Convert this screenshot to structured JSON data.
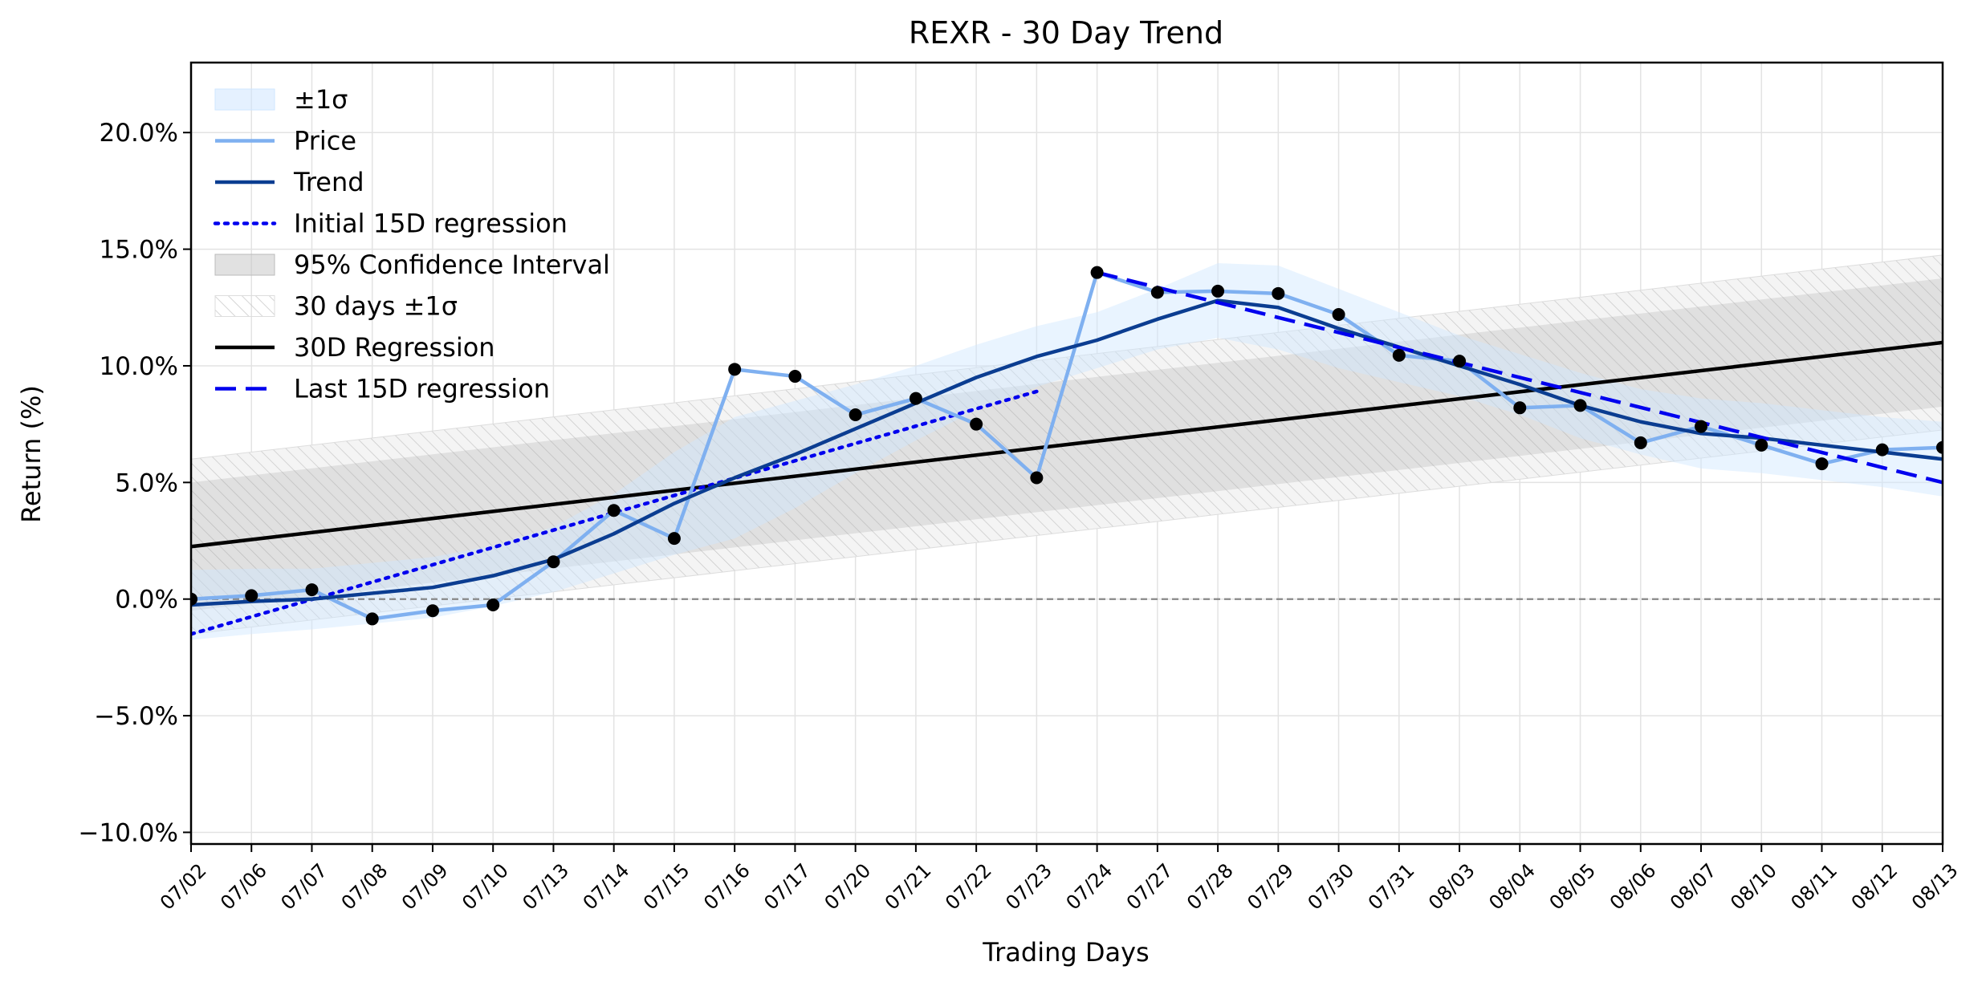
{
  "chart_data": {
    "type": "line",
    "title": "REXR - 30 Day Trend",
    "xlabel": "Trading Days",
    "ylabel": "Return (%)",
    "x": [
      "07/02",
      "07/06",
      "07/07",
      "07/08",
      "07/09",
      "07/10",
      "07/13",
      "07/14",
      "07/15",
      "07/16",
      "07/17",
      "07/20",
      "07/21",
      "07/22",
      "07/23",
      "07/24",
      "07/27",
      "07/28",
      "07/29",
      "07/30",
      "07/31",
      "08/03",
      "08/04",
      "08/05",
      "08/06",
      "08/07",
      "08/10",
      "08/11",
      "08/12",
      "08/13"
    ],
    "ylim": [
      -10.5,
      23
    ],
    "yticks": [
      -10,
      -5,
      0,
      5,
      10,
      15,
      20
    ],
    "ytick_labels": [
      "−10.0%",
      "−5.0%",
      "0.0%",
      "5.0%",
      "10.0%",
      "15.0%",
      "20.0%"
    ],
    "grid": true,
    "legend_position": "top-left",
    "legend": [
      {
        "label": "±1σ",
        "kind": "patch",
        "color": "#cfe6ff"
      },
      {
        "label": "Price",
        "kind": "line",
        "color": "#7fb0f0"
      },
      {
        "label": "Trend",
        "kind": "line",
        "color": "#0b3d91"
      },
      {
        "label": "Initial 15D regression",
        "kind": "dotted",
        "color": "#0000ee"
      },
      {
        "label": "95% Confidence Interval",
        "kind": "patch",
        "color": "#c8c8c8"
      },
      {
        "label": "30 days ±1σ",
        "kind": "hatch",
        "color": "#cccccc"
      },
      {
        "label": "30D Regression",
        "kind": "line",
        "color": "#000000"
      },
      {
        "label": "Last 15D regression",
        "kind": "dashed",
        "color": "#0000ee"
      }
    ],
    "series": [
      {
        "name": "Price",
        "color": "#7fb0f0",
        "markers": true,
        "values": [
          0.0,
          0.15,
          0.4,
          -0.85,
          -0.5,
          -0.25,
          1.6,
          3.8,
          2.6,
          9.85,
          9.55,
          7.9,
          8.6,
          7.5,
          5.2,
          14.0,
          13.15,
          13.2,
          13.1,
          12.2,
          10.45,
          10.2,
          8.2,
          8.3,
          6.7,
          7.4,
          6.6,
          5.8,
          6.4,
          6.5
        ]
      },
      {
        "name": "Trend",
        "color": "#0b3d91",
        "values": [
          -0.25,
          -0.1,
          0.0,
          0.25,
          0.5,
          1.0,
          1.7,
          2.8,
          4.1,
          5.2,
          6.2,
          7.3,
          8.4,
          9.5,
          10.4,
          11.1,
          12.0,
          12.8,
          12.5,
          11.6,
          10.8,
          10.0,
          9.2,
          8.3,
          7.6,
          7.1,
          6.9,
          6.6,
          6.3,
          6.0
        ]
      },
      {
        "name": "Initial 15D regression",
        "color": "#0000ee",
        "style": "dotted",
        "x_range": [
          0,
          14
        ],
        "line": [
          -1.5,
          8.9
        ]
      },
      {
        "name": "30D Regression",
        "color": "#000000",
        "x_range": [
          0,
          29
        ],
        "line": [
          2.25,
          11.0
        ],
        "ci95_half_width": [
          2.75,
          2.75
        ],
        "band_1sigma_half_width": [
          3.75,
          3.75
        ]
      },
      {
        "name": "Last 15D regression",
        "color": "#0000ee",
        "style": "dashed",
        "x_range": [
          15,
          29
        ],
        "line": [
          14.0,
          5.0
        ]
      },
      {
        "name": "±1σ",
        "color": "#cfe6ff",
        "type": "area",
        "half_width": [
          1.5,
          1.4,
          1.3,
          1.3,
          1.3,
          1.3,
          1.4,
          1.7,
          2.2,
          2.6,
          2.3,
          1.9,
          1.6,
          1.4,
          1.3,
          1.2,
          1.3,
          1.6,
          1.8,
          1.7,
          1.5,
          1.3,
          1.3,
          1.4,
          1.4,
          1.5,
          1.5,
          1.5,
          1.5,
          1.6
        ]
      }
    ],
    "annotations": [
      {
        "kind": "hline",
        "y": 0,
        "style": "dashed",
        "color": "#888888"
      }
    ]
  }
}
